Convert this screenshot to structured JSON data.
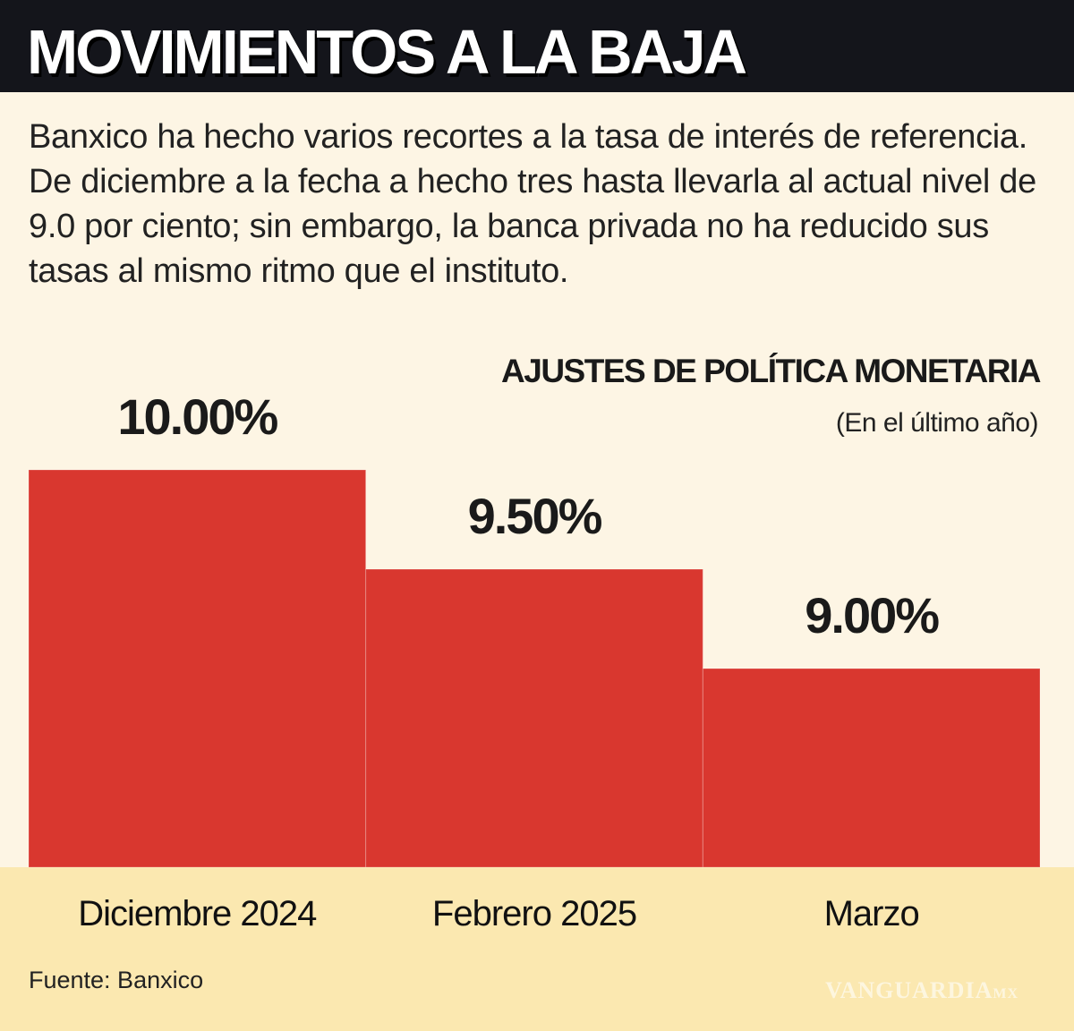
{
  "title": "MOVIMIENTOS A LA BAJA",
  "description": "Banxico ha hecho varios recortes a la tasa de interés de referencia. De diciembre a la fecha a hecho tres hasta llevarla al actual nivel de 9.0 por ciento; sin embargo, la banca privada no ha reducido sus tasas al mismo ritmo que el instituto.",
  "source": "Fuente: Banxico",
  "watermark": "VANGUARDIA MX",
  "colors": {
    "header": "#14151b",
    "bar": "#d9372f",
    "background": "#fdf5e4",
    "band": "#fbe8b0"
  },
  "chart_data": {
    "type": "bar",
    "title": "AJUSTES DE POLÍTICA MONETARIA",
    "subtitle": "(En el último año)",
    "categories": [
      "Diciembre 2024",
      "Febrero 2025",
      "Marzo"
    ],
    "values": [
      10.0,
      9.5,
      9.0
    ],
    "data_labels": [
      "10.00%",
      "9.50%",
      "9.00%"
    ],
    "xlabel": "",
    "ylabel": "",
    "ylim": [
      8,
      10
    ],
    "grid": false
  }
}
